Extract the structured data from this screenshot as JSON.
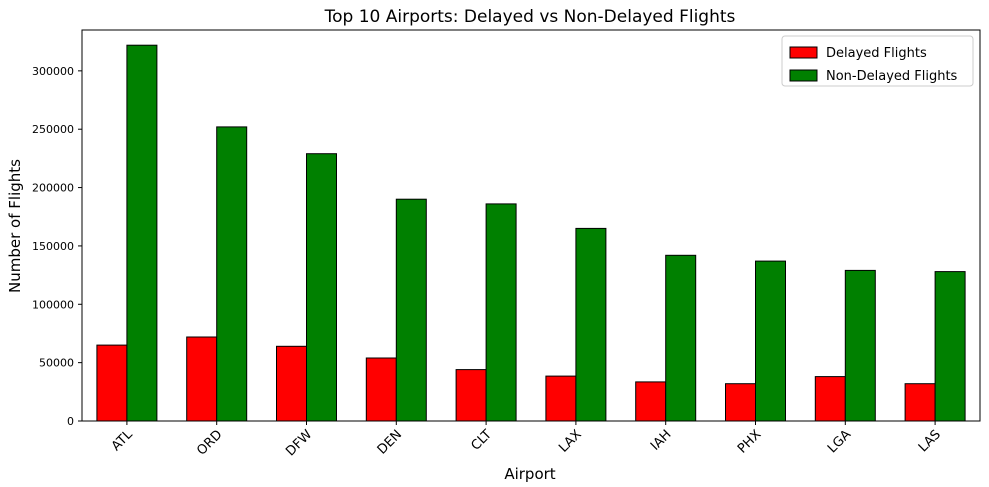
{
  "chart_data": {
    "type": "bar",
    "title": "Top 10 Airports: Delayed vs Non-Delayed Flights",
    "xlabel": "Airport",
    "ylabel": "Number of Flights",
    "categories": [
      "ATL",
      "ORD",
      "DFW",
      "DEN",
      "CLT",
      "LAX",
      "IAH",
      "PHX",
      "LGA",
      "LAS"
    ],
    "series": [
      {
        "name": "Delayed Flights",
        "color": "#ff0000",
        "values": [
          65000,
          72000,
          64000,
          54000,
          44000,
          38500,
          33500,
          32000,
          38000,
          32000
        ]
      },
      {
        "name": "Non-Delayed Flights",
        "color": "#008000",
        "values": [
          322000,
          252000,
          229000,
          190000,
          186000,
          165000,
          142000,
          137000,
          129000,
          128000
        ]
      }
    ],
    "ylim": [
      0,
      335000
    ],
    "yticks": [
      0,
      50000,
      100000,
      150000,
      200000,
      250000,
      300000
    ],
    "ytick_labels": [
      "0",
      "50000",
      "100000",
      "150000",
      "200000",
      "250000",
      "300000"
    ],
    "grid": false,
    "legend_position": "top-right",
    "bar_edge_color": "#000000",
    "xtick_rotation_deg": 45
  }
}
